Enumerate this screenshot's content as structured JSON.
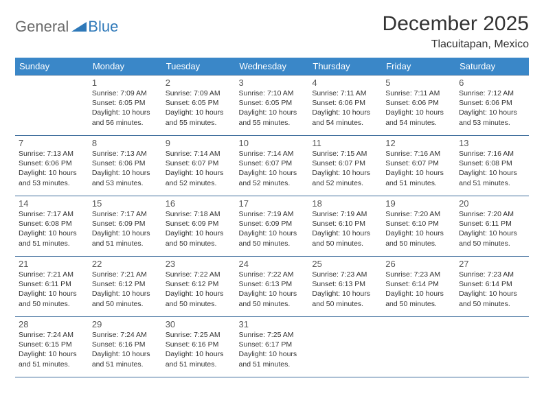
{
  "logo": {
    "part1": "General",
    "part2": "Blue"
  },
  "title": "December 2025",
  "subtitle": "Tlacuitapan, Mexico",
  "colors": {
    "header_bg": "#3a87c8",
    "header_text": "#ffffff",
    "border": "#3a6a9a",
    "logo_blue": "#2f79b9",
    "logo_gray": "#6a6a6a"
  },
  "weekdays": [
    "Sunday",
    "Monday",
    "Tuesday",
    "Wednesday",
    "Thursday",
    "Friday",
    "Saturday"
  ],
  "weeks": [
    [
      null,
      {
        "n": "1",
        "sr": "7:09 AM",
        "ss": "6:05 PM",
        "dl": "10 hours and 56 minutes."
      },
      {
        "n": "2",
        "sr": "7:09 AM",
        "ss": "6:05 PM",
        "dl": "10 hours and 55 minutes."
      },
      {
        "n": "3",
        "sr": "7:10 AM",
        "ss": "6:05 PM",
        "dl": "10 hours and 55 minutes."
      },
      {
        "n": "4",
        "sr": "7:11 AM",
        "ss": "6:06 PM",
        "dl": "10 hours and 54 minutes."
      },
      {
        "n": "5",
        "sr": "7:11 AM",
        "ss": "6:06 PM",
        "dl": "10 hours and 54 minutes."
      },
      {
        "n": "6",
        "sr": "7:12 AM",
        "ss": "6:06 PM",
        "dl": "10 hours and 53 minutes."
      }
    ],
    [
      {
        "n": "7",
        "sr": "7:13 AM",
        "ss": "6:06 PM",
        "dl": "10 hours and 53 minutes."
      },
      {
        "n": "8",
        "sr": "7:13 AM",
        "ss": "6:06 PM",
        "dl": "10 hours and 53 minutes."
      },
      {
        "n": "9",
        "sr": "7:14 AM",
        "ss": "6:07 PM",
        "dl": "10 hours and 52 minutes."
      },
      {
        "n": "10",
        "sr": "7:14 AM",
        "ss": "6:07 PM",
        "dl": "10 hours and 52 minutes."
      },
      {
        "n": "11",
        "sr": "7:15 AM",
        "ss": "6:07 PM",
        "dl": "10 hours and 52 minutes."
      },
      {
        "n": "12",
        "sr": "7:16 AM",
        "ss": "6:07 PM",
        "dl": "10 hours and 51 minutes."
      },
      {
        "n": "13",
        "sr": "7:16 AM",
        "ss": "6:08 PM",
        "dl": "10 hours and 51 minutes."
      }
    ],
    [
      {
        "n": "14",
        "sr": "7:17 AM",
        "ss": "6:08 PM",
        "dl": "10 hours and 51 minutes."
      },
      {
        "n": "15",
        "sr": "7:17 AM",
        "ss": "6:09 PM",
        "dl": "10 hours and 51 minutes."
      },
      {
        "n": "16",
        "sr": "7:18 AM",
        "ss": "6:09 PM",
        "dl": "10 hours and 50 minutes."
      },
      {
        "n": "17",
        "sr": "7:19 AM",
        "ss": "6:09 PM",
        "dl": "10 hours and 50 minutes."
      },
      {
        "n": "18",
        "sr": "7:19 AM",
        "ss": "6:10 PM",
        "dl": "10 hours and 50 minutes."
      },
      {
        "n": "19",
        "sr": "7:20 AM",
        "ss": "6:10 PM",
        "dl": "10 hours and 50 minutes."
      },
      {
        "n": "20",
        "sr": "7:20 AM",
        "ss": "6:11 PM",
        "dl": "10 hours and 50 minutes."
      }
    ],
    [
      {
        "n": "21",
        "sr": "7:21 AM",
        "ss": "6:11 PM",
        "dl": "10 hours and 50 minutes."
      },
      {
        "n": "22",
        "sr": "7:21 AM",
        "ss": "6:12 PM",
        "dl": "10 hours and 50 minutes."
      },
      {
        "n": "23",
        "sr": "7:22 AM",
        "ss": "6:12 PM",
        "dl": "10 hours and 50 minutes."
      },
      {
        "n": "24",
        "sr": "7:22 AM",
        "ss": "6:13 PM",
        "dl": "10 hours and 50 minutes."
      },
      {
        "n": "25",
        "sr": "7:23 AM",
        "ss": "6:13 PM",
        "dl": "10 hours and 50 minutes."
      },
      {
        "n": "26",
        "sr": "7:23 AM",
        "ss": "6:14 PM",
        "dl": "10 hours and 50 minutes."
      },
      {
        "n": "27",
        "sr": "7:23 AM",
        "ss": "6:14 PM",
        "dl": "10 hours and 50 minutes."
      }
    ],
    [
      {
        "n": "28",
        "sr": "7:24 AM",
        "ss": "6:15 PM",
        "dl": "10 hours and 51 minutes."
      },
      {
        "n": "29",
        "sr": "7:24 AM",
        "ss": "6:16 PM",
        "dl": "10 hours and 51 minutes."
      },
      {
        "n": "30",
        "sr": "7:25 AM",
        "ss": "6:16 PM",
        "dl": "10 hours and 51 minutes."
      },
      {
        "n": "31",
        "sr": "7:25 AM",
        "ss": "6:17 PM",
        "dl": "10 hours and 51 minutes."
      },
      null,
      null,
      null
    ]
  ],
  "labels": {
    "sunrise": "Sunrise: ",
    "sunset": "Sunset: ",
    "daylight": "Daylight: "
  }
}
